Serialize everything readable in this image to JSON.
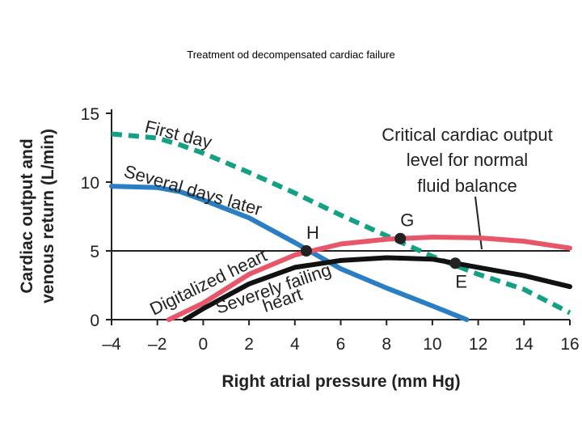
{
  "slide": {
    "title": "Treatment od decompensated cardiac failure"
  },
  "chart_data": {
    "type": "line",
    "xlabel": "Right atrial pressure (mm Hg)",
    "ylabel_lines": [
      "Cardiac output and",
      "venous return (L/min)"
    ],
    "xlim": [
      -4,
      16
    ],
    "ylim": [
      0,
      15
    ],
    "xticks": [
      "–4",
      "–2",
      "0",
      "2",
      "4",
      "6",
      "8",
      "10",
      "12",
      "14",
      "16"
    ],
    "yticks": [
      "0",
      "5",
      "10",
      "15"
    ],
    "colors": {
      "teal": "#14a085",
      "blue": "#2a7ec3",
      "red": "#e8566a",
      "black": "#111111"
    },
    "series": [
      {
        "name": "First day",
        "color": "#14a085",
        "dashed": true,
        "x": [
          -4,
          -2,
          -1,
          0,
          2,
          4,
          6,
          8,
          10,
          12,
          14,
          16
        ],
        "y": [
          13.5,
          13.2,
          12.7,
          12.1,
          10.7,
          9.2,
          7.6,
          6.1,
          4.6,
          3.3,
          2.2,
          0.5
        ]
      },
      {
        "name": "Several days later",
        "color": "#2a7ec3",
        "dashed": false,
        "x": [
          -4,
          -2,
          -1,
          0,
          2,
          4,
          6,
          8,
          10,
          11.5
        ],
        "y": [
          9.7,
          9.6,
          9.3,
          8.7,
          7.4,
          5.6,
          3.7,
          2.3,
          1.0,
          0
        ]
      },
      {
        "name": "Digitalized heart",
        "color": "#e8566a",
        "dashed": false,
        "x": [
          -1.5,
          0,
          2,
          4,
          6,
          8,
          10,
          12,
          14,
          16
        ],
        "y": [
          0,
          1.2,
          3.3,
          4.7,
          5.5,
          5.85,
          6.0,
          5.95,
          5.7,
          5.2
        ]
      },
      {
        "name": "Severely failing heart",
        "color": "#111111",
        "dashed": false,
        "x": [
          -0.8,
          0,
          2,
          4,
          6,
          8,
          10,
          11,
          12,
          14,
          16
        ],
        "y": [
          0,
          0.8,
          2.6,
          3.8,
          4.3,
          4.5,
          4.4,
          4.1,
          3.8,
          3.2,
          2.4
        ]
      }
    ],
    "reference_line": {
      "y": 5,
      "label": [
        "Critical cardiac output",
        "level for normal",
        "fluid balance"
      ]
    },
    "points": [
      {
        "name": "H",
        "x": 4.5,
        "y": 5.0
      },
      {
        "name": "G",
        "x": 8.6,
        "y": 5.9
      },
      {
        "name": "E",
        "x": 11.0,
        "y": 4.1
      }
    ],
    "labels": {
      "first_day": "First day",
      "several_days": "Several days later",
      "digitalized": "Digitalized heart",
      "failing_1": "Severely failing",
      "failing_2": "heart"
    }
  }
}
